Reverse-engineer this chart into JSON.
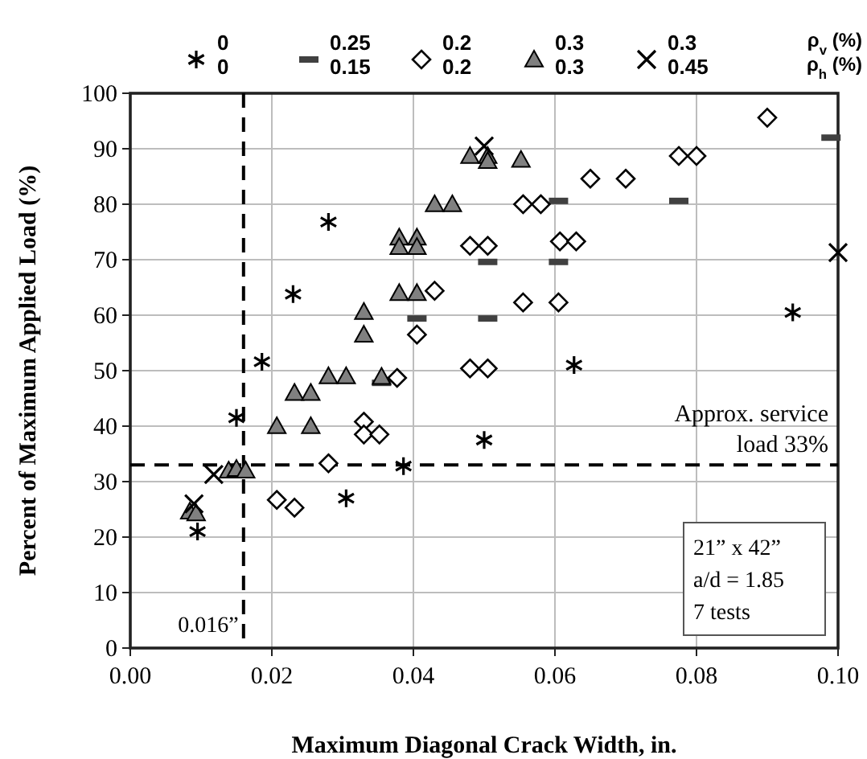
{
  "chart_data": {
    "type": "scatter",
    "xlabel": "Maximum Diagonal Crack Width, in.",
    "ylabel": "Percent of Maximum Applied Load (%)",
    "legend_title": "ρ$_{v}$ (%)\nρ$_{h}$ (%)",
    "xlim": [
      0,
      0.1
    ],
    "ylim": [
      0,
      100
    ],
    "xticks": [
      {
        "value": 0,
        "label": "0.00"
      },
      0.02,
      0.04,
      0.06,
      0.08,
      {
        "value": 0.1,
        "label": "0.10"
      }
    ],
    "yticks": [
      0,
      10,
      20,
      30,
      40,
      50,
      60,
      70,
      80,
      90,
      100
    ],
    "grid": true,
    "legend": "top",
    "series": [
      {
        "name": "0\n0",
        "color": "#000000",
        "marker": "cross",
        "x": [
          0.0095,
          0.015,
          0.0186,
          0.023,
          0.028,
          0.0305,
          0.0386,
          0.05,
          0.0627,
          0.0936
        ],
        "values": [
          21,
          41.5,
          51.6,
          63.8,
          76.8,
          27,
          32.8,
          37.5,
          51,
          60.5
        ]
      },
      {
        "name": "0.25\n0.15",
        "color": "#404040",
        "x": [
          0.0355,
          0.0405,
          0.0505,
          0.0505,
          0.0605,
          0.0605,
          0.0775,
          0.099
        ],
        "values": [
          47.8,
          59.4,
          59.4,
          69.6,
          69.6,
          80.6,
          80.6,
          92
        ]
      },
      {
        "name": "0.2\n0.2",
        "color": "#000000",
        "marker": "diamond",
        "x": [
          0.0207,
          0.0232,
          0.028,
          0.033,
          0.033,
          0.0352,
          0.0377,
          0.0405,
          0.043,
          0.048,
          0.0505,
          0.048,
          0.0505,
          0.0555,
          0.058,
          0.0555,
          0.0605,
          0.0607,
          0.063,
          0.065,
          0.07,
          0.0775,
          0.08,
          0.09
        ],
        "values": [
          26.7,
          25.3,
          33.3,
          40.8,
          38.5,
          38.5,
          48.7,
          56.5,
          64.4,
          72.5,
          72.5,
          50.4,
          50.4,
          80,
          80,
          62.3,
          62.3,
          73.3,
          73.3,
          84.6,
          84.6,
          88.7,
          88.7,
          95.6
        ]
      },
      {
        "name": "0.3\n0.3",
        "color": "#808080",
        "marker": "triangle",
        "x": [
          0.0084,
          0.0093,
          0.0139,
          0.015,
          0.0163,
          0.0207,
          0.0255,
          0.0232,
          0.0255,
          0.028,
          0.0305,
          0.0355,
          0.033,
          0.033,
          0.038,
          0.0405,
          0.038,
          0.038,
          0.0405,
          0.0405,
          0.043,
          0.0455,
          0.048,
          0.0505,
          0.0505,
          0.0552
        ],
        "values": [
          24.6,
          24.3,
          32,
          32.3,
          32,
          40,
          40,
          46,
          46,
          49,
          49,
          48.9,
          60.6,
          56.5,
          64,
          64,
          74,
          72.3,
          74,
          72.3,
          80,
          80,
          88.7,
          88.7,
          87.8,
          88
        ]
      },
      {
        "name": "0.3\n0.45",
        "color": "#000000",
        "marker": "cross",
        "x": [
          0.009,
          0.0118,
          0.05,
          0.1
        ],
        "values": [
          26,
          31.3,
          90.5,
          71.3
        ]
      }
    ],
    "ref_lines": [
      {
        "axis": "x",
        "value": 0.016,
        "label": "0.016”",
        "line_style": "dashed"
      },
      {
        "axis": "y",
        "value": 33,
        "label": "Approx. service load 33%",
        "line_style": "dashed"
      }
    ],
    "annotations": [
      "21” x 42”",
      "a/d = 1.85",
      "7 tests"
    ]
  }
}
